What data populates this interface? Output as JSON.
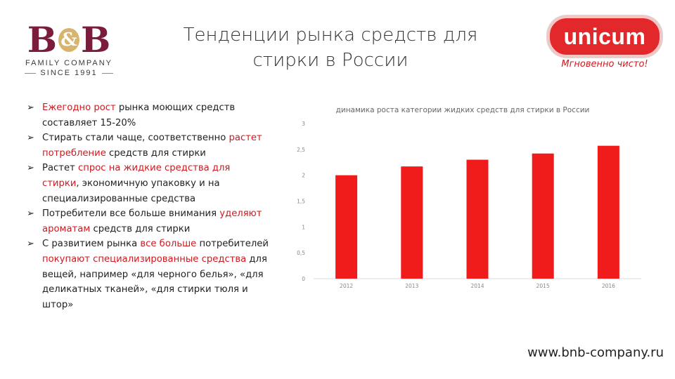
{
  "logo_left": {
    "letters": [
      "B",
      "&",
      "B"
    ],
    "family": "FAMILY COMPANY",
    "since": "SINCE 1991",
    "color": "#7a1d3d",
    "accent": "#d9b46f"
  },
  "title": {
    "line1": "Тенденции рынка средств для",
    "line2": "стирки в России"
  },
  "logo_right": {
    "brand": "unicum",
    "tagline": "Мгновенно чисто!",
    "color": "#e3282c"
  },
  "bullets": [
    {
      "segments": [
        {
          "text": "Ежегодно рост",
          "hl": true
        },
        {
          "text": " рынка моющих средств составляет  15-20%",
          "hl": false
        }
      ]
    },
    {
      "segments": [
        {
          "text": "Стирать стали чаще, соответственно ",
          "hl": false
        },
        {
          "text": "растет потребление",
          "hl": true
        },
        {
          "text": " средств для стирки",
          "hl": false
        }
      ]
    },
    {
      "segments": [
        {
          "text": "Растет ",
          "hl": false
        },
        {
          "text": "спрос на жидкие средства для стирки",
          "hl": true
        },
        {
          "text": ", экономичную упаковку и на специализированные средства",
          "hl": false
        }
      ]
    },
    {
      "segments": [
        {
          "text": "Потребители все больше внимания ",
          "hl": false
        },
        {
          "text": "уделяют ароматам",
          "hl": true
        },
        {
          "text": " средств для стирки",
          "hl": false
        }
      ]
    },
    {
      "segments": [
        {
          "text": "С развитием рынка ",
          "hl": false
        },
        {
          "text": "все больше",
          "hl": true
        },
        {
          "text": " потребителей ",
          "hl": false
        },
        {
          "text": "покупают специализированные средства",
          "hl": true
        },
        {
          "text": " для вещей, например «для черного белья», «для деликатных тканей», «для стирки тюля и штор»",
          "hl": false
        }
      ]
    }
  ],
  "chart_data": {
    "type": "bar",
    "title": "динамика роста категории жидких средств для стирки в России",
    "categories": [
      "2012",
      "2013",
      "2014",
      "2015",
      "2016"
    ],
    "values": [
      2.0,
      2.17,
      2.3,
      2.42,
      2.57
    ],
    "ylim": [
      0,
      3
    ],
    "yticks": [
      "0",
      "0,5",
      "1",
      "1,5",
      "2",
      "2,5",
      "3"
    ],
    "ytick_values": [
      0,
      0.5,
      1,
      1.5,
      2,
      2.5,
      3
    ],
    "xlabel": "",
    "ylabel": "",
    "grid": false,
    "legend": "none",
    "bar_color": "#f01b1b"
  },
  "footer": {
    "site": "www.bnb-company.ru"
  }
}
